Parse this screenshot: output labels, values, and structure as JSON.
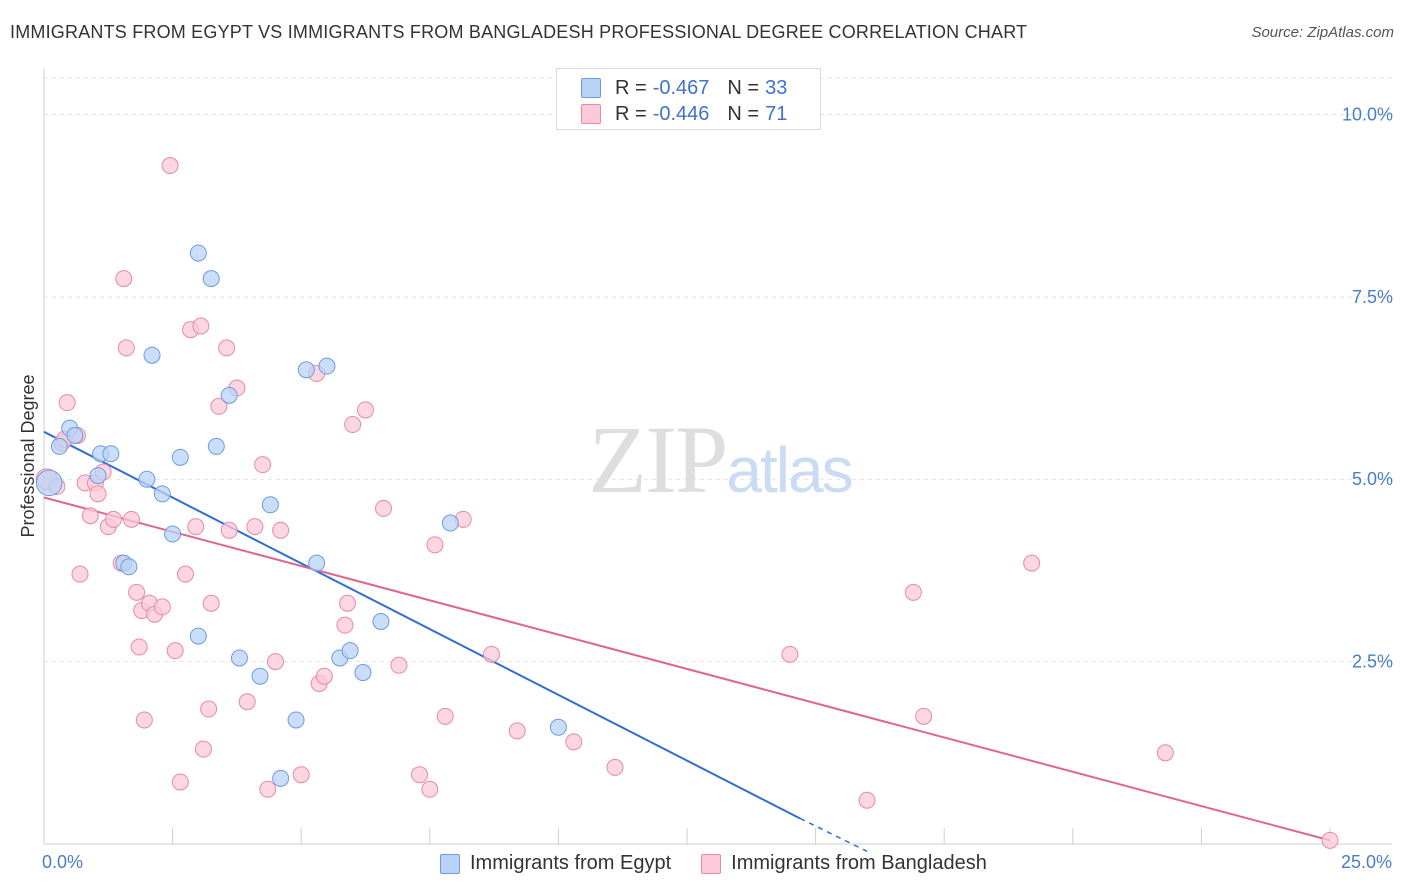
{
  "header": {
    "title": "IMMIGRANTS FROM EGYPT VS IMMIGRANTS FROM BANGLADESH PROFESSIONAL DEGREE CORRELATION CHART",
    "source": "Source: ZipAtlas.com"
  },
  "colors": {
    "egypt_fill": "#b9d3f7",
    "egypt_stroke": "#6f9be0",
    "egypt_line": "#2f6fd1",
    "bangladesh_fill": "#fbc9d8",
    "bangladesh_stroke": "#e889a8",
    "bangladesh_line": "#e0648f",
    "tick_text": "#4a7cc9"
  },
  "stats_legend": {
    "rows": [
      {
        "r_label": "R =",
        "r_value": "-0.467",
        "n_label": "N =",
        "n_value": "33"
      },
      {
        "r_label": "R =",
        "r_value": "-0.446",
        "n_label": "N =",
        "n_value": "71"
      }
    ]
  },
  "chart_data": {
    "type": "scatter",
    "title": "IMMIGRANTS FROM EGYPT VS IMMIGRANTS FROM BANGLADESH PROFESSIONAL DEGREE CORRELATION CHART",
    "xlabel": "",
    "ylabel": "Professional Degree",
    "xlim": [
      0,
      25
    ],
    "ylim": [
      0,
      10.5
    ],
    "x_tick_labels": [
      "0.0%",
      "25.0%"
    ],
    "y_ticks": [
      2.5,
      5.0,
      7.5,
      10.0
    ],
    "y_tick_labels": [
      "2.5%",
      "5.0%",
      "7.5%",
      "10.0%"
    ],
    "grid": true,
    "watermark": "ZIPatlas",
    "series": [
      {
        "name": "Immigrants from Egypt",
        "r": -0.467,
        "n": 33,
        "trend": {
          "x": [
            0.0,
            14.7
          ],
          "y": [
            5.65,
            0.35
          ]
        },
        "trend_dashed": {
          "x": [
            14.7,
            16.0
          ],
          "y": [
            0.35,
            -0.1
          ]
        },
        "points": [
          [
            0.1,
            4.95,
            1.6
          ],
          [
            0.3,
            5.45,
            1.0
          ],
          [
            0.5,
            5.7,
            1.0
          ],
          [
            0.6,
            5.6,
            1.0
          ],
          [
            1.05,
            5.05,
            1.0
          ],
          [
            1.1,
            5.35,
            1.0
          ],
          [
            1.3,
            5.35,
            1.0
          ],
          [
            1.55,
            3.85,
            1.0
          ],
          [
            1.65,
            3.8,
            1.0
          ],
          [
            2.0,
            5.0,
            1.0
          ],
          [
            2.1,
            6.7,
            1.0
          ],
          [
            2.3,
            4.8,
            1.0
          ],
          [
            2.5,
            4.25,
            1.0
          ],
          [
            2.65,
            5.3,
            1.0
          ],
          [
            3.0,
            8.1,
            1.0
          ],
          [
            3.0,
            2.85,
            1.0
          ],
          [
            3.25,
            7.75,
            1.0
          ],
          [
            3.35,
            5.45,
            1.0
          ],
          [
            3.6,
            6.15,
            1.0
          ],
          [
            3.8,
            2.55,
            1.0
          ],
          [
            4.2,
            2.3,
            1.0
          ],
          [
            4.4,
            4.65,
            1.0
          ],
          [
            4.6,
            0.9,
            1.0
          ],
          [
            4.9,
            1.7,
            1.0
          ],
          [
            5.1,
            6.5,
            1.0
          ],
          [
            5.3,
            3.85,
            1.0
          ],
          [
            5.5,
            6.55,
            1.0
          ],
          [
            5.75,
            2.55,
            1.0
          ],
          [
            5.95,
            2.65,
            1.0
          ],
          [
            6.2,
            2.35,
            1.0
          ],
          [
            6.55,
            3.05,
            1.0
          ],
          [
            7.9,
            4.4,
            1.0
          ],
          [
            10.0,
            1.6,
            1.0
          ]
        ]
      },
      {
        "name": "Immigrants from Bangladesh",
        "r": -0.446,
        "n": 71,
        "trend": {
          "x": [
            0.0,
            25.0
          ],
          "y": [
            4.75,
            0.05
          ]
        },
        "points": [
          [
            0.05,
            5.0,
            1.3
          ],
          [
            0.25,
            4.9,
            1.0
          ],
          [
            0.35,
            5.5,
            1.0
          ],
          [
            0.4,
            5.55,
            1.0
          ],
          [
            0.45,
            6.05,
            1.0
          ],
          [
            0.65,
            5.6,
            1.0
          ],
          [
            0.7,
            3.7,
            1.0
          ],
          [
            0.8,
            4.95,
            1.0
          ],
          [
            0.9,
            4.5,
            1.0
          ],
          [
            1.0,
            4.95,
            1.0
          ],
          [
            1.05,
            4.8,
            1.0
          ],
          [
            1.15,
            5.1,
            1.0
          ],
          [
            1.25,
            4.35,
            1.0
          ],
          [
            1.35,
            4.45,
            1.0
          ],
          [
            1.5,
            3.85,
            1.0
          ],
          [
            1.55,
            7.75,
            1.0
          ],
          [
            1.6,
            6.8,
            1.0
          ],
          [
            1.7,
            4.45,
            1.0
          ],
          [
            1.8,
            3.45,
            1.0
          ],
          [
            1.85,
            2.7,
            1.0
          ],
          [
            1.9,
            3.2,
            1.0
          ],
          [
            1.95,
            1.7,
            1.0
          ],
          [
            2.05,
            3.3,
            1.0
          ],
          [
            2.15,
            3.15,
            1.0
          ],
          [
            2.3,
            3.25,
            1.0
          ],
          [
            2.45,
            9.3,
            1.0
          ],
          [
            2.55,
            2.65,
            1.0
          ],
          [
            2.65,
            0.85,
            1.0
          ],
          [
            2.75,
            3.7,
            1.0
          ],
          [
            2.85,
            7.05,
            1.0
          ],
          [
            2.95,
            4.35,
            1.0
          ],
          [
            3.05,
            7.1,
            1.0
          ],
          [
            3.1,
            1.3,
            1.0
          ],
          [
            3.2,
            1.85,
            1.0
          ],
          [
            3.25,
            3.3,
            1.0
          ],
          [
            3.4,
            6.0,
            1.0
          ],
          [
            3.55,
            6.8,
            1.0
          ],
          [
            3.6,
            4.3,
            1.0
          ],
          [
            3.75,
            6.25,
            1.0
          ],
          [
            3.95,
            1.95,
            1.0
          ],
          [
            4.1,
            4.35,
            1.0
          ],
          [
            4.25,
            5.2,
            1.0
          ],
          [
            4.35,
            0.75,
            1.0
          ],
          [
            4.5,
            2.5,
            1.0
          ],
          [
            4.6,
            4.3,
            1.0
          ],
          [
            5.0,
            0.95,
            1.0
          ],
          [
            5.3,
            6.45,
            1.0
          ],
          [
            5.35,
            2.2,
            1.0
          ],
          [
            5.45,
            2.3,
            1.0
          ],
          [
            5.85,
            3.0,
            1.0
          ],
          [
            5.9,
            3.3,
            1.0
          ],
          [
            6.0,
            5.75,
            1.0
          ],
          [
            6.25,
            5.95,
            1.0
          ],
          [
            6.6,
            4.6,
            1.0
          ],
          [
            6.9,
            2.45,
            1.0
          ],
          [
            7.3,
            0.95,
            1.0
          ],
          [
            7.5,
            0.75,
            1.0
          ],
          [
            7.6,
            4.1,
            1.0
          ],
          [
            7.8,
            1.75,
            1.0
          ],
          [
            8.15,
            4.45,
            1.0
          ],
          [
            8.7,
            2.6,
            1.0
          ],
          [
            9.2,
            1.55,
            1.0
          ],
          [
            10.3,
            1.4,
            1.0
          ],
          [
            11.1,
            1.05,
            1.0
          ],
          [
            14.5,
            2.6,
            1.0
          ],
          [
            16.0,
            0.6,
            1.0
          ],
          [
            16.9,
            3.45,
            1.0
          ],
          [
            17.1,
            1.75,
            1.0
          ],
          [
            19.2,
            3.85,
            1.0
          ],
          [
            21.8,
            1.25,
            1.0
          ],
          [
            25.0,
            0.05,
            1.0
          ]
        ]
      }
    ]
  }
}
